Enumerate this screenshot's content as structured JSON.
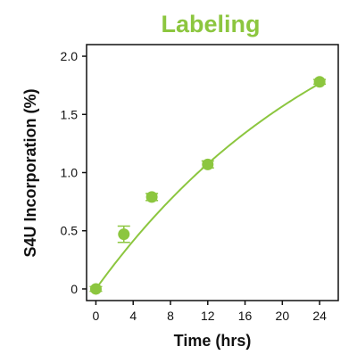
{
  "chart_data": {
    "type": "scatter",
    "title": "Labeling",
    "xlabel": "Time (hrs)",
    "ylabel": "S4U Incorporation (%)",
    "xlim": [
      -1,
      26
    ],
    "ylim": [
      -0.1,
      2.1
    ],
    "xticks": [
      0,
      4,
      8,
      12,
      16,
      20,
      24
    ],
    "yticks": [
      0,
      0.5,
      1.0,
      1.5,
      2.0
    ],
    "yticklabels": [
      "0",
      "0.5",
      "1.0",
      "1.5",
      "2.0"
    ],
    "grid": false,
    "points": [
      {
        "x": 0,
        "y": 0.0,
        "err": 0.02
      },
      {
        "x": 3,
        "y": 0.47,
        "err": 0.07
      },
      {
        "x": 6,
        "y": 0.79,
        "err": 0.03
      },
      {
        "x": 12,
        "y": 1.07,
        "err": 0.03
      },
      {
        "x": 24,
        "y": 1.78,
        "err": 0.02
      }
    ],
    "fit_curve": {
      "model": "exponential",
      "a": 3.0,
      "k": 0.037
    }
  },
  "colors": {
    "accent": "#8cc63f",
    "axis": "#111111"
  }
}
